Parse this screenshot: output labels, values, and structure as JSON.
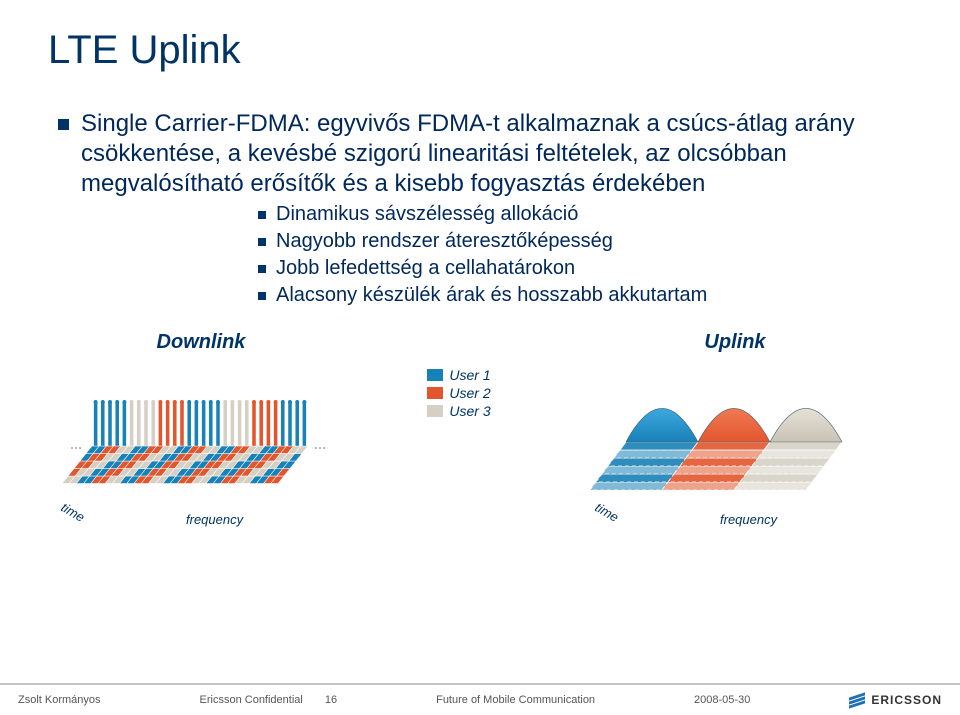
{
  "title": "LTE Uplink",
  "bullets": {
    "l1a": "Single Carrier-FDMA: egyvivős FDMA-t alkalmaznak a csúcs-átlag arány csökkentése, a kevésbé szigorú linearitási feltételek, az olcsóbban megvalósítható erősítők és a kisebb fogyasztás érdekében",
    "l2": [
      "Dinamikus sávszélesség allokáció",
      "Nagyobb rendszer áteresztőképesség",
      "Jobb lefedettség a cellahatárokon",
      "Alacsony készülék árak és hosszabb akkutartam"
    ]
  },
  "diagrams": {
    "downlink_label": "Downlink",
    "uplink_label": "Uplink",
    "axis_time": "time",
    "axis_freq": "frequency",
    "colors": {
      "user1": "#1881b7",
      "user2": "#e2562d",
      "user3": "#d6d0c4",
      "grid_face": "#f4f2ee",
      "grid_side": "#cfd4d8",
      "axis": "#555555"
    }
  },
  "legend": {
    "u1": "User 1",
    "u2": "User 2",
    "u3": "User 3"
  },
  "footer": {
    "author": "Zsolt Kormányos",
    "conf": "Ericsson Confidential",
    "page": "16",
    "title": "Future of Mobile Communication",
    "date": "2008-05-30",
    "brand": "ERICSSON"
  }
}
